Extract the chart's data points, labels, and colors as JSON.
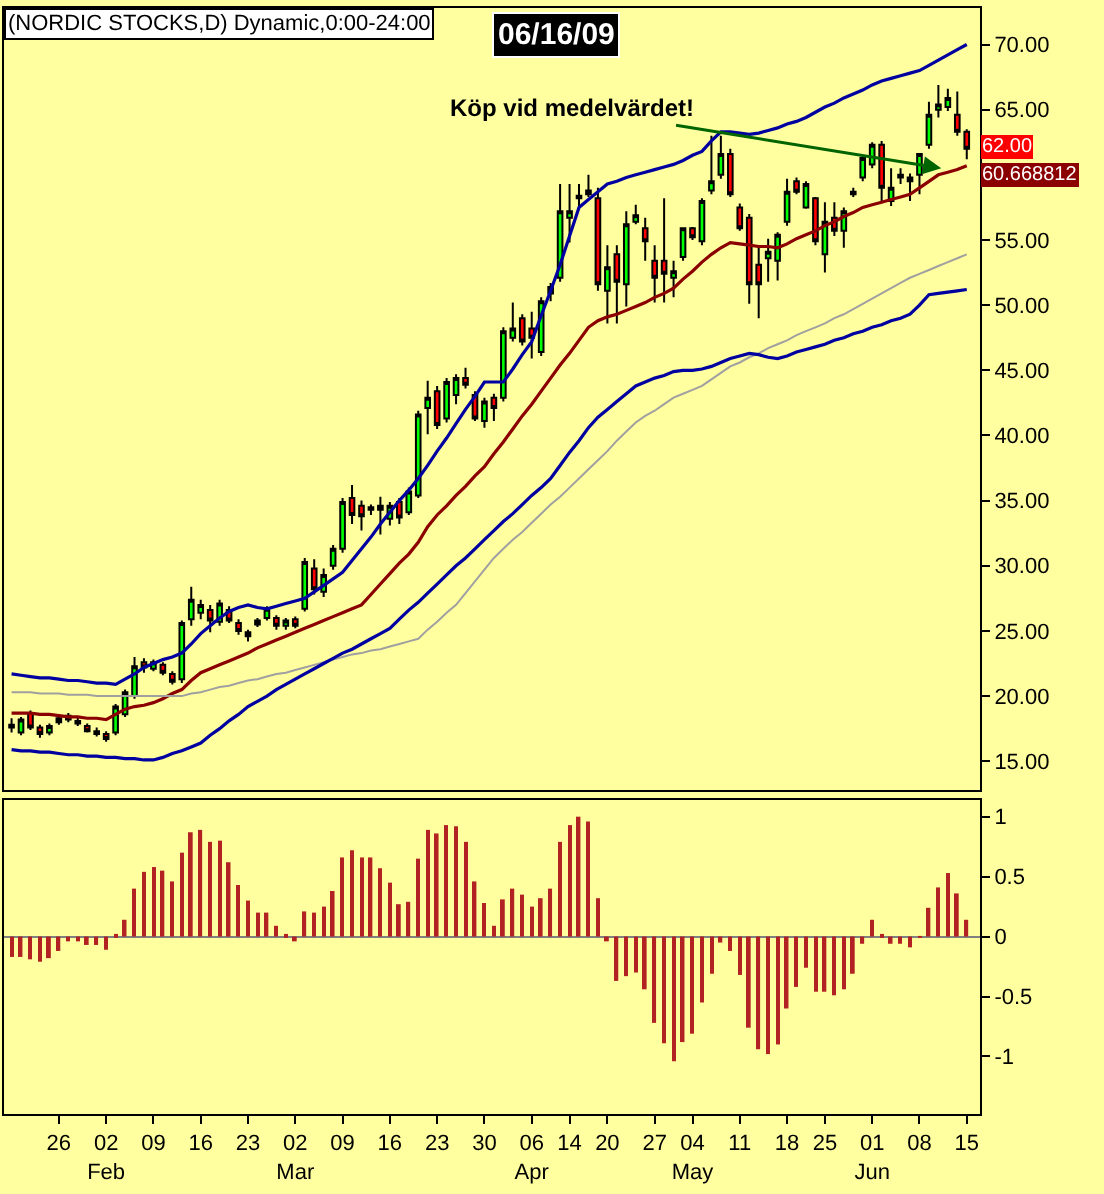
{
  "chart_data": [
    {
      "type": "candlestick",
      "title": "(NORDIC STOCKS,D) Dynamic,0:00-24:00",
      "subtitle": "06/16/09",
      "categories": [
        null,
        null,
        null,
        null,
        null,
        null,
        null,
        null,
        null,
        null,
        null,
        null,
        null,
        null,
        null,
        null,
        null,
        null,
        null,
        null,
        null,
        null,
        null,
        null,
        null,
        null,
        null,
        null,
        null,
        null,
        null,
        null,
        null,
        null,
        null,
        null,
        null,
        null,
        null,
        null,
        null,
        null,
        null,
        null,
        null,
        null,
        null,
        null,
        null,
        null,
        null,
        null,
        null,
        null,
        null,
        null,
        null,
        null,
        null,
        null,
        null,
        null,
        null,
        null,
        null,
        null,
        null,
        null,
        null,
        null,
        null,
        null,
        null,
        null,
        null,
        null,
        null,
        null,
        null,
        null,
        null,
        null,
        null,
        null,
        null,
        null,
        null,
        null,
        null,
        null,
        null,
        null,
        null,
        null,
        null,
        null,
        null,
        null,
        null,
        null,
        null,
        null
      ],
      "ohlc": [
        [
          17.8,
          18.3,
          17.2,
          17.6
        ],
        [
          17.2,
          18.4,
          17.0,
          18.2
        ],
        [
          18.7,
          18.9,
          17.4,
          17.6
        ],
        [
          17.6,
          17.8,
          16.8,
          17.1
        ],
        [
          17.2,
          17.9,
          17.0,
          17.7
        ],
        [
          18.0,
          18.6,
          17.8,
          18.3
        ],
        [
          18.5,
          18.7,
          18.0,
          18.2
        ],
        [
          18.1,
          18.4,
          17.7,
          17.9
        ],
        [
          17.7,
          17.9,
          17.2,
          17.3
        ],
        [
          17.3,
          17.6,
          16.9,
          17.1
        ],
        [
          17.1,
          17.3,
          16.5,
          16.7
        ],
        [
          17.2,
          19.4,
          17.0,
          19.2
        ],
        [
          18.6,
          20.5,
          18.4,
          20.3
        ],
        [
          20.0,
          23.0,
          19.8,
          22.3
        ],
        [
          22.6,
          22.9,
          21.8,
          22.2
        ],
        [
          22.1,
          22.8,
          21.9,
          22.6
        ],
        [
          22.4,
          22.6,
          21.6,
          21.8
        ],
        [
          21.7,
          21.9,
          20.9,
          21.1
        ],
        [
          21.3,
          25.8,
          21.0,
          25.6
        ],
        [
          25.9,
          28.4,
          25.4,
          27.4
        ],
        [
          26.4,
          27.4,
          25.9,
          27.0
        ],
        [
          26.6,
          27.0,
          24.9,
          25.8
        ],
        [
          25.7,
          27.4,
          25.4,
          27.1
        ],
        [
          26.6,
          26.9,
          25.6,
          25.8
        ],
        [
          25.6,
          25.9,
          24.7,
          25.0
        ],
        [
          24.6,
          25.1,
          24.2,
          24.9
        ],
        [
          25.8,
          26.0,
          25.3,
          25.5
        ],
        [
          26.0,
          26.9,
          25.8,
          26.7
        ],
        [
          26.0,
          26.2,
          25.1,
          25.4
        ],
        [
          25.4,
          26.0,
          25.1,
          25.8
        ],
        [
          25.9,
          26.1,
          25.2,
          25.4
        ],
        [
          26.7,
          30.6,
          26.5,
          30.3
        ],
        [
          29.8,
          30.5,
          27.8,
          28.2
        ],
        [
          28.0,
          29.8,
          27.6,
          29.3
        ],
        [
          30.0,
          31.6,
          29.7,
          31.3
        ],
        [
          31.3,
          35.2,
          31.0,
          34.9
        ],
        [
          35.2,
          36.2,
          33.2,
          33.9
        ],
        [
          34.6,
          35.0,
          32.7,
          33.8
        ],
        [
          34.3,
          34.7,
          33.9,
          34.5
        ],
        [
          34.6,
          35.3,
          32.4,
          34.3
        ],
        [
          33.6,
          34.9,
          33.1,
          34.6
        ],
        [
          34.9,
          35.2,
          33.2,
          33.7
        ],
        [
          34.1,
          36.0,
          33.9,
          35.7
        ],
        [
          35.4,
          41.9,
          35.2,
          41.6
        ],
        [
          42.1,
          44.2,
          40.1,
          42.9
        ],
        [
          43.4,
          43.8,
          40.5,
          40.8
        ],
        [
          41.3,
          44.4,
          41.0,
          44.1
        ],
        [
          43.1,
          44.7,
          42.4,
          44.4
        ],
        [
          44.4,
          45.2,
          43.6,
          43.9
        ],
        [
          43.1,
          43.4,
          41.1,
          41.3
        ],
        [
          41.1,
          42.9,
          40.6,
          42.6
        ],
        [
          42.9,
          43.2,
          41.1,
          42.1
        ],
        [
          42.9,
          48.3,
          42.6,
          48.0
        ],
        [
          47.5,
          50.2,
          47.2,
          48.2
        ],
        [
          49.0,
          49.3,
          46.9,
          47.2
        ],
        [
          48.2,
          49.5,
          45.9,
          47.5
        ],
        [
          46.4,
          50.6,
          46.1,
          50.3
        ],
        [
          50.9,
          51.7,
          50.3,
          51.4
        ],
        [
          52.1,
          59.3,
          51.8,
          57.2
        ],
        [
          56.7,
          59.3,
          54.8,
          57.2
        ],
        [
          58.2,
          59.3,
          57.4,
          58.4
        ],
        [
          58.5,
          60.0,
          58.3,
          58.8
        ],
        [
          58.2,
          59.0,
          51.1,
          51.6
        ],
        [
          51.1,
          54.6,
          48.6,
          52.9
        ],
        [
          53.9,
          54.6,
          48.6,
          51.8
        ],
        [
          51.6,
          57.2,
          49.9,
          56.2
        ],
        [
          56.4,
          57.7,
          56.2,
          56.9
        ],
        [
          55.9,
          56.7,
          53.4,
          54.9
        ],
        [
          53.4,
          54.6,
          50.2,
          52.1
        ],
        [
          53.4,
          58.2,
          50.2,
          52.4
        ],
        [
          52.1,
          53.4,
          50.6,
          52.6
        ],
        [
          53.7,
          55.9,
          53.4,
          55.9
        ],
        [
          55.9,
          56.0,
          55.0,
          55.2
        ],
        [
          54.9,
          58.2,
          54.6,
          58.0
        ],
        [
          58.8,
          63.0,
          58.5,
          59.5
        ],
        [
          60.0,
          63.0,
          59.7,
          61.6
        ],
        [
          61.6,
          62.0,
          58.3,
          58.5
        ],
        [
          57.5,
          57.8,
          55.7,
          55.9
        ],
        [
          56.7,
          57.0,
          50.1,
          51.6
        ],
        [
          53.1,
          54.6,
          49.0,
          51.6
        ],
        [
          53.6,
          55.1,
          51.8,
          54.1
        ],
        [
          53.4,
          55.6,
          51.9,
          55.4
        ],
        [
          56.4,
          59.7,
          56.1,
          58.7
        ],
        [
          59.5,
          59.8,
          58.5,
          58.7
        ],
        [
          57.5,
          59.5,
          57.4,
          59.3
        ],
        [
          58.2,
          58.3,
          54.6,
          54.9
        ],
        [
          53.9,
          57.9,
          52.5,
          56.4
        ],
        [
          56.7,
          57.9,
          55.3,
          55.7
        ],
        [
          55.7,
          57.5,
          54.4,
          57.2
        ],
        [
          58.5,
          59.0,
          58.3,
          58.7
        ],
        [
          59.8,
          61.5,
          59.5,
          61.3
        ],
        [
          60.8,
          62.5,
          60.5,
          62.3
        ],
        [
          62.3,
          62.6,
          57.9,
          59.0
        ],
        [
          58.0,
          60.5,
          57.6,
          59.0
        ],
        [
          59.8,
          60.5,
          59.3,
          60.0
        ],
        [
          59.5,
          60.1,
          58.0,
          59.8
        ],
        [
          60.0,
          61.6,
          58.5,
          61.6
        ],
        [
          62.3,
          65.6,
          62.0,
          64.6
        ],
        [
          65.0,
          66.9,
          64.4,
          65.4
        ],
        [
          65.2,
          66.6,
          64.9,
          65.9
        ],
        [
          64.6,
          66.4,
          63.0,
          63.3
        ],
        [
          63.3,
          63.5,
          61.2,
          62.0
        ]
      ],
      "series": [
        {
          "type": "line",
          "color": "#0000a0",
          "values": [
            21.7,
            21.6,
            21.5,
            21.4,
            21.4,
            21.3,
            21.2,
            21.2,
            21.1,
            21.0,
            21.0,
            20.9,
            21.3,
            21.7,
            22.2,
            22.5,
            22.8,
            23.0,
            23.3,
            24.0,
            24.8,
            25.4,
            26.0,
            26.5,
            26.8,
            27.0,
            26.8,
            26.7,
            26.9,
            27.1,
            27.3,
            27.5,
            28.0,
            28.5,
            29.0,
            29.5,
            30.4,
            31.3,
            32.2,
            33.2,
            34.1,
            35.0,
            35.8,
            36.7,
            37.7,
            38.8,
            39.8,
            40.9,
            42.0,
            43.0,
            44.1,
            44.1,
            44.1,
            45.1,
            46.2,
            47.2,
            49.2,
            51.1,
            53.1,
            55.3,
            57.5,
            58.1,
            58.7,
            59.3,
            59.5,
            59.8,
            60.0,
            60.2,
            60.4,
            60.6,
            60.8,
            61.1,
            61.5,
            61.8,
            62.6,
            63.3,
            63.3,
            63.2,
            63.1,
            63.2,
            63.4,
            63.6,
            63.9,
            64.1,
            64.4,
            64.8,
            65.2,
            65.5,
            65.9,
            66.2,
            66.5,
            66.9,
            67.2,
            67.4,
            67.6,
            67.8,
            68.0,
            68.4,
            68.8,
            69.2,
            69.6,
            70.0
          ]
        },
        {
          "type": "line",
          "color": "#8b0000",
          "values": [
            18.7,
            18.7,
            18.7,
            18.6,
            18.6,
            18.5,
            18.4,
            18.4,
            18.3,
            18.3,
            18.2,
            18.6,
            19.0,
            19.2,
            19.3,
            19.5,
            19.8,
            20.2,
            20.5,
            21.2,
            21.8,
            22.1,
            22.4,
            22.7,
            23.0,
            23.3,
            23.7,
            24.0,
            24.3,
            24.6,
            24.9,
            25.2,
            25.5,
            25.8,
            26.1,
            26.4,
            26.7,
            27.0,
            27.8,
            28.6,
            29.4,
            30.2,
            30.9,
            31.8,
            33.0,
            33.9,
            34.6,
            35.4,
            36.1,
            36.9,
            37.6,
            38.6,
            39.5,
            40.5,
            41.5,
            42.4,
            43.4,
            44.4,
            45.4,
            46.3,
            47.3,
            48.3,
            48.8,
            49.1,
            49.3,
            49.6,
            49.9,
            50.2,
            50.6,
            50.9,
            51.3,
            52.0,
            52.6,
            53.3,
            53.9,
            54.4,
            54.8,
            54.7,
            54.6,
            54.5,
            54.5,
            54.4,
            54.7,
            55.1,
            55.4,
            55.7,
            56.1,
            56.4,
            56.8,
            57.1,
            57.5,
            57.7,
            57.9,
            58.1,
            58.3,
            58.5,
            59.0,
            59.5,
            60.0,
            60.2,
            60.4,
            60.7
          ]
        },
        {
          "type": "line",
          "color": "#a0a0a0",
          "values": [
            20.3,
            20.3,
            20.3,
            20.2,
            20.2,
            20.2,
            20.1,
            20.1,
            20.1,
            20.0,
            20.0,
            20.0,
            20.0,
            20.0,
            20.0,
            20.0,
            20.0,
            20.0,
            20.0,
            20.2,
            20.3,
            20.5,
            20.7,
            20.8,
            21.0,
            21.2,
            21.3,
            21.5,
            21.7,
            21.8,
            22.0,
            22.2,
            22.4,
            22.6,
            22.8,
            23.0,
            23.2,
            23.3,
            23.5,
            23.6,
            23.8,
            24.0,
            24.2,
            24.4,
            25.1,
            25.7,
            26.4,
            27.0,
            27.9,
            28.8,
            29.7,
            30.6,
            31.3,
            32.0,
            32.6,
            33.3,
            34.0,
            34.7,
            35.3,
            36.0,
            36.7,
            37.4,
            38.1,
            38.8,
            39.6,
            40.3,
            41.0,
            41.5,
            41.9,
            42.4,
            42.9,
            43.2,
            43.5,
            43.8,
            44.3,
            44.8,
            45.3,
            45.6,
            46.0,
            46.3,
            46.7,
            47.0,
            47.3,
            47.7,
            48.0,
            48.3,
            48.6,
            49.0,
            49.3,
            49.7,
            50.1,
            50.5,
            50.9,
            51.3,
            51.7,
            52.1,
            52.4,
            52.7,
            53.0,
            53.3,
            53.6,
            53.9
          ]
        },
        {
          "type": "line",
          "color": "#0000a0",
          "values": [
            15.9,
            15.8,
            15.8,
            15.7,
            15.7,
            15.6,
            15.5,
            15.5,
            15.4,
            15.4,
            15.3,
            15.3,
            15.2,
            15.2,
            15.1,
            15.1,
            15.3,
            15.6,
            15.8,
            16.1,
            16.4,
            17.0,
            17.5,
            18.1,
            18.6,
            19.2,
            19.6,
            20.0,
            20.5,
            20.9,
            21.3,
            21.7,
            22.1,
            22.5,
            22.9,
            23.3,
            23.6,
            24.0,
            24.4,
            24.8,
            25.2,
            25.9,
            26.6,
            27.2,
            27.9,
            28.6,
            29.3,
            30.0,
            30.6,
            31.3,
            32.0,
            32.7,
            33.4,
            34.0,
            34.7,
            35.4,
            36.0,
            36.7,
            37.7,
            38.7,
            39.6,
            40.6,
            41.4,
            42.0,
            42.6,
            43.2,
            43.8,
            44.1,
            44.4,
            44.6,
            44.9,
            45.0,
            45.0,
            45.1,
            45.3,
            45.6,
            45.9,
            46.1,
            46.3,
            46.2,
            46.0,
            45.9,
            46.1,
            46.4,
            46.6,
            46.8,
            47.0,
            47.3,
            47.5,
            47.8,
            48.0,
            48.3,
            48.5,
            48.8,
            49.0,
            49.3,
            50.0,
            50.8,
            50.9,
            51.0,
            51.1,
            51.2
          ]
        }
      ],
      "ylim": [
        12.8,
        72.8
      ],
      "yticks": [
        {
          "value": 15,
          "label": "15.00"
        },
        {
          "value": 20,
          "label": "20.00"
        },
        {
          "value": 25,
          "label": "25.00"
        },
        {
          "value": 30,
          "label": "30.00"
        },
        {
          "value": 35,
          "label": "35.00"
        },
        {
          "value": 40,
          "label": "40.00"
        },
        {
          "value": 45,
          "label": "45.00"
        },
        {
          "value": 50,
          "label": "50.00"
        },
        {
          "value": 55,
          "label": "55.00"
        },
        {
          "value": 60,
          "label": null
        },
        {
          "value": 65,
          "label": "65.00"
        },
        {
          "value": 70,
          "label": "70.00"
        }
      ],
      "annotations": [
        "Köp vid medelvärdet!",
        {
          "text": "62.00",
          "y": 62
        },
        "60.668812"
      ],
      "tick_labels": "y"
    },
    {
      "type": "bar",
      "color": "#b22222",
      "categories": [
        null,
        null,
        null,
        null,
        null,
        "26",
        null,
        null,
        null,
        null,
        "02\nFeb",
        null,
        null,
        null,
        null,
        "09",
        null,
        null,
        null,
        null,
        "16",
        null,
        null,
        null,
        null,
        "23",
        null,
        null,
        null,
        null,
        "02\nMar",
        null,
        null,
        null,
        null,
        "09",
        null,
        null,
        null,
        null,
        "16",
        null,
        null,
        null,
        null,
        "23",
        null,
        null,
        null,
        null,
        "30",
        null,
        null,
        null,
        null,
        "06\nApr",
        null,
        null,
        null,
        "14",
        null,
        null,
        null,
        "20",
        null,
        null,
        null,
        null,
        "27",
        null,
        null,
        null,
        "04\nMay",
        null,
        null,
        null,
        null,
        "11",
        null,
        null,
        null,
        null,
        "18",
        null,
        null,
        null,
        "25",
        null,
        null,
        null,
        null,
        "01\nJun",
        null,
        null,
        null,
        null,
        "08",
        null,
        null,
        null,
        null,
        "15"
      ],
      "values": [
        -0.17,
        -0.17,
        -0.19,
        -0.21,
        -0.18,
        -0.12,
        -0.04,
        -0.04,
        -0.07,
        -0.07,
        -0.11,
        0.01,
        0.14,
        0.4,
        0.54,
        0.58,
        0.55,
        0.46,
        0.7,
        0.87,
        0.89,
        0.79,
        0.8,
        0.62,
        0.43,
        0.3,
        0.2,
        0.2,
        0.09,
        0.02,
        -0.04,
        0.21,
        0.2,
        0.25,
        0.38,
        0.66,
        0.72,
        0.66,
        0.66,
        0.57,
        0.45,
        0.27,
        0.29,
        0.65,
        0.89,
        0.86,
        0.93,
        0.92,
        0.79,
        0.46,
        0.28,
        0.09,
        0.31,
        0.4,
        0.35,
        0.25,
        0.32,
        0.4,
        0.79,
        0.93,
        1.0,
        0.96,
        0.32,
        -0.04,
        -0.37,
        -0.33,
        -0.3,
        -0.44,
        -0.72,
        -0.89,
        -1.04,
        -0.88,
        -0.81,
        -0.55,
        -0.31,
        -0.05,
        -0.12,
        -0.32,
        -0.76,
        -0.94,
        -0.98,
        -0.9,
        -0.6,
        -0.42,
        -0.26,
        -0.46,
        -0.46,
        -0.49,
        -0.44,
        -0.31,
        -0.06,
        0.14,
        0.02,
        -0.06,
        -0.06,
        -0.09,
        -0.01,
        0.24,
        0.41,
        0.53,
        0.36,
        0.14
      ],
      "ylim": [
        -1.48,
        1.14
      ],
      "yticks": [
        1,
        0.5,
        0,
        -0.5,
        -1
      ]
    }
  ]
}
